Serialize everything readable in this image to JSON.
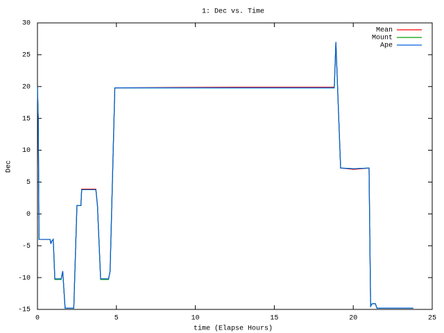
{
  "chart_data": {
    "type": "line",
    "title": "1: Dec vs. Time",
    "x_label": "time (Elapse Hours)",
    "y_label": "Dec",
    "x": [
      0,
      0.05,
      0.1,
      0.2,
      0.8,
      0.85,
      0.9,
      1.0,
      1.1,
      1.5,
      1.6,
      1.75,
      2.3,
      2.5,
      2.75,
      2.8,
      3.7,
      3.8,
      4.0,
      4.5,
      4.6,
      4.9,
      12.6,
      18.8,
      18.9,
      19.2,
      20.0,
      21.0,
      21.1,
      21.2,
      21.4,
      21.5,
      23.8
    ],
    "series": [
      {
        "name": "Mean",
        "color": "#ff0000",
        "values": [
          20,
          15,
          -4,
          -4,
          -4,
          -4.7,
          -4.3,
          -4,
          -10.2,
          -10.2,
          -9,
          -14.8,
          -14.8,
          1.3,
          1.3,
          3.9,
          3.9,
          1.3,
          -10.2,
          -10.2,
          -9,
          19.8,
          19.9,
          19.9,
          27,
          7.2,
          7.0,
          7.2,
          -14.5,
          -14.1,
          -14.1,
          -14.8,
          -14.8
        ]
      },
      {
        "name": "Mount",
        "color": "#00a000",
        "values": [
          20,
          15,
          -4,
          -4,
          -4,
          -4.7,
          -4.3,
          -4,
          -10.3,
          -10.3,
          -9,
          -14.8,
          -14.8,
          1.3,
          1.3,
          3.8,
          3.8,
          1.3,
          -10.3,
          -10.3,
          -9,
          19.8,
          19.8,
          19.8,
          27,
          7.2,
          7.1,
          7.2,
          -14.5,
          -14.1,
          -14.1,
          -14.8,
          -14.8
        ]
      },
      {
        "name": "Ape",
        "color": "#0060e0",
        "values": [
          20,
          15,
          -4,
          -4,
          -4,
          -4.7,
          -4.3,
          -4,
          -10.2,
          -10.2,
          -9,
          -14.8,
          -14.8,
          1.3,
          1.3,
          3.8,
          3.8,
          1.3,
          -10.2,
          -10.2,
          -9,
          19.8,
          19.8,
          19.8,
          27,
          7.2,
          7.1,
          7.2,
          -14.5,
          -14.1,
          -14.1,
          -14.8,
          -14.8
        ]
      }
    ],
    "xlim": [
      0,
      25
    ],
    "xticks": [
      0,
      5,
      10,
      15,
      20,
      25
    ],
    "ylim": [
      -15,
      30
    ],
    "yticks": [
      -15,
      -10,
      -5,
      0,
      5,
      10,
      15,
      20,
      25,
      30
    ],
    "legend": "top-right"
  }
}
